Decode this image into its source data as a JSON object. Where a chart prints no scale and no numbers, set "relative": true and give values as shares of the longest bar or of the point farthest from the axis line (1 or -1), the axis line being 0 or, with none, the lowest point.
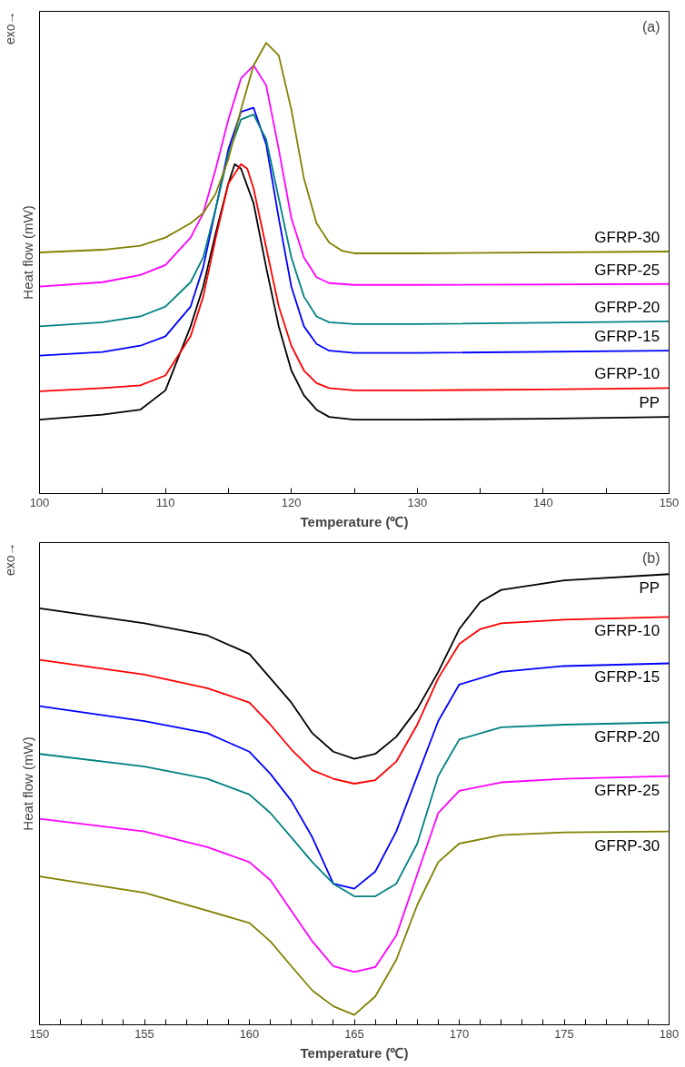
{
  "chart_data": [
    {
      "type": "line",
      "relative": true,
      "xlabel": "Temperature (℃)",
      "ylabel": "Heat flow (mW)",
      "annotations": [
        "exo→",
        "(a)"
      ],
      "xlim": [
        100,
        150
      ],
      "xticks": [
        100,
        {
          "value": 105,
          "label": null
        },
        110,
        {
          "value": 115,
          "label": null
        },
        120,
        {
          "value": 125,
          "label": null
        },
        130,
        {
          "value": 135,
          "label": null
        },
        140,
        {
          "value": 145,
          "label": null
        },
        150
      ],
      "grid": false,
      "legend": false,
      "marker": "none",
      "line_style": "solid",
      "series": [
        {
          "name": "PP",
          "color": "#000000",
          "x": [
            100,
            105,
            108,
            110,
            112,
            113,
            114,
            115,
            115.5,
            116,
            117,
            118,
            119,
            120,
            121,
            122,
            123,
            125,
            130,
            140,
            150
          ],
          "values": [
            0.164,
            0.175,
            0.186,
            0.229,
            0.371,
            0.459,
            0.579,
            0.688,
            0.731,
            0.721,
            0.644,
            0.502,
            0.371,
            0.273,
            0.218,
            0.186,
            0.17,
            0.164,
            0.164,
            0.166,
            0.17
          ]
        },
        {
          "name": "GFRP-10",
          "color": "#ff0000",
          "x": [
            100,
            105,
            108,
            110,
            112,
            113,
            114,
            115,
            116,
            116.5,
            117,
            118,
            119,
            120,
            121,
            122,
            123,
            125,
            130,
            140,
            150
          ],
          "values": [
            0.227,
            0.234,
            0.24,
            0.262,
            0.349,
            0.437,
            0.568,
            0.688,
            0.731,
            0.721,
            0.677,
            0.546,
            0.415,
            0.328,
            0.273,
            0.245,
            0.234,
            0.229,
            0.229,
            0.231,
            0.234
          ]
        },
        {
          "name": "GFRP-15",
          "color": "#0000ff",
          "x": [
            100,
            105,
            108,
            110,
            112,
            113,
            114,
            115,
            116,
            117,
            118,
            119,
            120,
            121,
            122,
            123,
            125,
            130,
            150
          ],
          "values": [
            0.306,
            0.314,
            0.328,
            0.349,
            0.415,
            0.502,
            0.633,
            0.764,
            0.847,
            0.856,
            0.775,
            0.611,
            0.459,
            0.371,
            0.332,
            0.317,
            0.312,
            0.312,
            0.317
          ]
        },
        {
          "name": "GFRP-20",
          "color": "#008080",
          "x": [
            100,
            105,
            108,
            110,
            112,
            113,
            114,
            115,
            116,
            117,
            118,
            119,
            120,
            121,
            122,
            123,
            125,
            130,
            150
          ],
          "values": [
            0.371,
            0.38,
            0.393,
            0.415,
            0.469,
            0.524,
            0.633,
            0.753,
            0.83,
            0.841,
            0.786,
            0.655,
            0.524,
            0.437,
            0.393,
            0.38,
            0.376,
            0.376,
            0.382
          ]
        },
        {
          "name": "GFRP-25",
          "color": "#ff00ff",
          "x": [
            100,
            105,
            108,
            110,
            112,
            113,
            114,
            115,
            116,
            117,
            118,
            119,
            120,
            121,
            122,
            123,
            125,
            130,
            150
          ],
          "values": [
            0.459,
            0.469,
            0.485,
            0.507,
            0.568,
            0.622,
            0.721,
            0.83,
            0.921,
            0.95,
            0.906,
            0.764,
            0.611,
            0.524,
            0.48,
            0.467,
            0.463,
            0.463,
            0.465
          ]
        },
        {
          "name": "GFRP-30",
          "color": "#808000",
          "x": [
            100,
            105,
            108,
            110,
            112,
            113,
            114,
            115,
            116,
            117,
            118,
            119,
            120,
            121,
            122,
            123,
            124,
            125,
            130,
            150
          ],
          "values": [
            0.535,
            0.541,
            0.55,
            0.568,
            0.6,
            0.622,
            0.666,
            0.742,
            0.852,
            0.95,
            1.0,
            0.972,
            0.852,
            0.699,
            0.6,
            0.557,
            0.539,
            0.533,
            0.533,
            0.537
          ]
        }
      ]
    },
    {
      "type": "line",
      "relative": true,
      "xlabel": "Temperature (℃)",
      "ylabel": "Heat flow (mW)",
      "annotations": [
        "exo→",
        "(b)"
      ],
      "xlim": [
        150,
        180
      ],
      "xticks": [
        150,
        {
          "value": 151,
          "label": null
        },
        {
          "value": 152,
          "label": null
        },
        {
          "value": 153,
          "label": null
        },
        {
          "value": 154,
          "label": null
        },
        155,
        {
          "value": 156,
          "label": null
        },
        {
          "value": 157,
          "label": null
        },
        {
          "value": 158,
          "label": null
        },
        {
          "value": 159,
          "label": null
        },
        160,
        {
          "value": 161,
          "label": null
        },
        {
          "value": 162,
          "label": null
        },
        {
          "value": 163,
          "label": null
        },
        {
          "value": 164,
          "label": null
        },
        165,
        {
          "value": 166,
          "label": null
        },
        {
          "value": 167,
          "label": null
        },
        {
          "value": 168,
          "label": null
        },
        {
          "value": 169,
          "label": null
        },
        170,
        {
          "value": 171,
          "label": null
        },
        {
          "value": 172,
          "label": null
        },
        {
          "value": 173,
          "label": null
        },
        {
          "value": 174,
          "label": null
        },
        175,
        {
          "value": 176,
          "label": null
        },
        {
          "value": 177,
          "label": null
        },
        {
          "value": 178,
          "label": null
        },
        {
          "value": 179,
          "label": null
        },
        180
      ],
      "grid": false,
      "legend": false,
      "marker": "none",
      "line_style": "solid",
      "series": [
        {
          "name": "PP",
          "color": "#000000",
          "x": [
            150,
            155,
            158,
            160,
            161,
            162,
            163,
            164,
            165,
            166,
            167,
            168,
            169,
            170,
            171,
            172,
            175,
            180
          ],
          "values": [
            0.924,
            0.891,
            0.864,
            0.823,
            0.769,
            0.715,
            0.647,
            0.606,
            0.59,
            0.601,
            0.639,
            0.701,
            0.783,
            0.878,
            0.938,
            0.965,
            0.986,
            1.0
          ]
        },
        {
          "name": "GFRP-10",
          "color": "#ff0000",
          "x": [
            150,
            155,
            158,
            160,
            161,
            162,
            163,
            164,
            165,
            166,
            167,
            168,
            169,
            170,
            171,
            172,
            175,
            180
          ],
          "values": [
            0.81,
            0.777,
            0.747,
            0.715,
            0.666,
            0.611,
            0.565,
            0.546,
            0.535,
            0.543,
            0.584,
            0.666,
            0.769,
            0.845,
            0.878,
            0.891,
            0.899,
            0.905
          ]
        },
        {
          "name": "GFRP-15",
          "color": "#0000ff",
          "x": [
            150,
            155,
            158,
            160,
            161,
            162,
            163,
            164,
            165,
            166,
            167,
            168,
            169,
            170,
            172,
            175,
            180
          ],
          "values": [
            0.707,
            0.674,
            0.647,
            0.606,
            0.557,
            0.497,
            0.416,
            0.313,
            0.302,
            0.34,
            0.429,
            0.552,
            0.674,
            0.755,
            0.783,
            0.796,
            0.802
          ]
        },
        {
          "name": "GFRP-20",
          "color": "#008080",
          "x": [
            150,
            155,
            158,
            160,
            161,
            162,
            163,
            164,
            165,
            166,
            167,
            168,
            169,
            170,
            172,
            175,
            180
          ],
          "values": [
            0.601,
            0.573,
            0.546,
            0.511,
            0.47,
            0.416,
            0.361,
            0.313,
            0.285,
            0.285,
            0.313,
            0.402,
            0.552,
            0.633,
            0.66,
            0.666,
            0.671
          ]
        },
        {
          "name": "GFRP-25",
          "color": "#ff00ff",
          "x": [
            150,
            155,
            158,
            160,
            161,
            162,
            163,
            164,
            165,
            166,
            167,
            168,
            169,
            170,
            172,
            175,
            180
          ],
          "values": [
            0.457,
            0.429,
            0.394,
            0.361,
            0.321,
            0.253,
            0.185,
            0.13,
            0.117,
            0.128,
            0.198,
            0.334,
            0.47,
            0.519,
            0.538,
            0.546,
            0.552
          ]
        },
        {
          "name": "GFRP-30",
          "color": "#808000",
          "x": [
            150,
            155,
            158,
            160,
            161,
            162,
            163,
            164,
            165,
            166,
            167,
            168,
            169,
            170,
            172,
            175,
            180
          ],
          "values": [
            0.329,
            0.293,
            0.253,
            0.226,
            0.185,
            0.13,
            0.076,
            0.041,
            0.022,
            0.063,
            0.144,
            0.266,
            0.361,
            0.402,
            0.421,
            0.427,
            0.429
          ]
        }
      ]
    }
  ]
}
